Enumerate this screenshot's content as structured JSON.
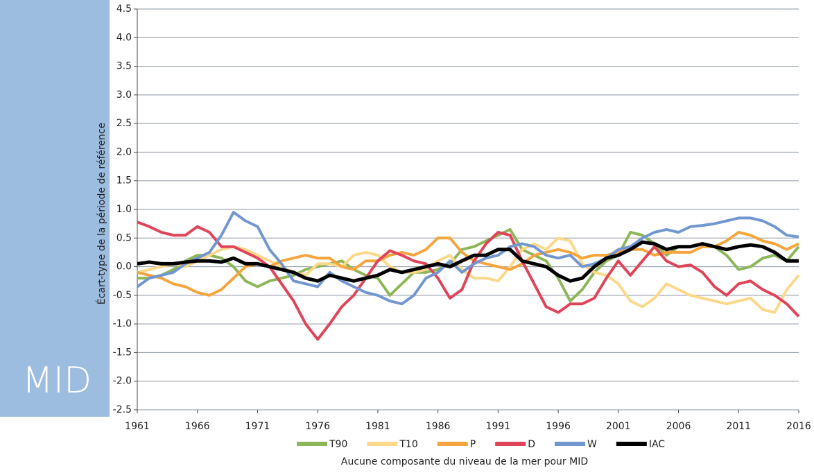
{
  "chart_data": {
    "type": "line",
    "panel_label": "MID",
    "y_label": "Écart-type de la période de référence",
    "x_label": "Aucune composante du niveau de la mer pour MID",
    "x": [
      1961,
      1962,
      1963,
      1964,
      1965,
      1966,
      1967,
      1968,
      1969,
      1970,
      1971,
      1972,
      1973,
      1974,
      1975,
      1976,
      1977,
      1978,
      1979,
      1980,
      1981,
      1982,
      1983,
      1984,
      1985,
      1986,
      1987,
      1988,
      1989,
      1990,
      1991,
      1992,
      1993,
      1994,
      1995,
      1996,
      1997,
      1998,
      1999,
      2000,
      2001,
      2002,
      2003,
      2004,
      2005,
      2006,
      2007,
      2008,
      2009,
      2010,
      2011,
      2012,
      2013,
      2014,
      2015,
      2016
    ],
    "xlim": [
      1961,
      2016
    ],
    "xticks": [
      1961,
      1966,
      1971,
      1976,
      1981,
      1986,
      1991,
      1996,
      2001,
      2006,
      2011,
      2016
    ],
    "ylim": [
      -2.5,
      4.5
    ],
    "yticks": [
      {
        "value": -2.5,
        "label": "-2.5"
      },
      {
        "value": -2,
        "label": "-2.0"
      },
      {
        "value": -1.5,
        "label": "-1.5"
      },
      {
        "value": -1,
        "label": "-1.0"
      },
      {
        "value": -0.5,
        "label": "-0.5"
      },
      {
        "value": 0,
        "label": "0.0"
      },
      {
        "value": 0.5,
        "label": "0.5"
      },
      {
        "value": 1,
        "label": "1.0"
      },
      {
        "value": 1.5,
        "label": "1.5"
      },
      {
        "value": 2,
        "label": "2.0"
      },
      {
        "value": 2.5,
        "label": "2.5"
      },
      {
        "value": 3,
        "label": "3.0"
      },
      {
        "value": 3.5,
        "label": "3.5"
      },
      {
        "value": 4,
        "label": "4.0"
      },
      {
        "value": 4.5,
        "label": "4.5"
      }
    ],
    "grid": true,
    "series": [
      {
        "name": "T90",
        "color": "#8db65a",
        "values": [
          -0.2,
          -0.2,
          -0.15,
          -0.05,
          0.1,
          0.2,
          0.2,
          0.15,
          0.0,
          -0.25,
          -0.35,
          -0.25,
          -0.2,
          -0.15,
          -0.05,
          0.0,
          0.05,
          0.1,
          -0.05,
          -0.15,
          -0.2,
          -0.5,
          -0.3,
          -0.1,
          -0.1,
          -0.05,
          0.05,
          0.3,
          0.35,
          0.45,
          0.55,
          0.65,
          0.3,
          0.2,
          0.1,
          -0.2,
          -0.6,
          -0.4,
          -0.1,
          0.1,
          0.2,
          0.6,
          0.55,
          0.4,
          0.2,
          0.35,
          0.35,
          0.4,
          0.35,
          0.2,
          -0.05,
          0.0,
          0.15,
          0.2,
          0.1,
          0.35
        ]
      },
      {
        "name": "T10",
        "color": "#fcd98a",
        "values": [
          -0.1,
          -0.05,
          0.0,
          0.05,
          0.0,
          0.1,
          0.2,
          0.3,
          0.35,
          0.3,
          0.2,
          0.1,
          0.0,
          -0.1,
          -0.15,
          0.05,
          0.05,
          0.0,
          0.2,
          0.25,
          0.2,
          0.0,
          -0.1,
          -0.1,
          -0.05,
          0.1,
          0.2,
          -0.05,
          -0.2,
          -0.2,
          -0.25,
          0.0,
          0.3,
          0.4,
          0.3,
          0.5,
          0.45,
          0.05,
          -0.1,
          -0.15,
          -0.3,
          -0.6,
          -0.7,
          -0.55,
          -0.3,
          -0.4,
          -0.5,
          -0.55,
          -0.6,
          -0.65,
          -0.6,
          -0.55,
          -0.75,
          -0.8,
          -0.4,
          -0.15
        ]
      },
      {
        "name": "P",
        "color": "#f5a53d",
        "values": [
          -0.1,
          -0.15,
          -0.2,
          -0.3,
          -0.35,
          -0.45,
          -0.5,
          -0.4,
          -0.2,
          0.0,
          0.05,
          0.0,
          0.1,
          0.15,
          0.2,
          0.15,
          0.15,
          0.0,
          -0.05,
          0.1,
          0.1,
          0.2,
          0.25,
          0.2,
          0.3,
          0.5,
          0.5,
          0.25,
          0.1,
          0.05,
          0.0,
          -0.05,
          0.05,
          0.2,
          0.25,
          0.3,
          0.25,
          0.15,
          0.2,
          0.2,
          0.25,
          0.3,
          0.3,
          0.2,
          0.25,
          0.25,
          0.25,
          0.35,
          0.35,
          0.45,
          0.6,
          0.55,
          0.45,
          0.4,
          0.3,
          0.4
        ]
      },
      {
        "name": "D",
        "color": "#e04459",
        "values": [
          0.78,
          0.7,
          0.6,
          0.55,
          0.55,
          0.7,
          0.6,
          0.35,
          0.35,
          0.25,
          0.15,
          0.0,
          -0.3,
          -0.6,
          -1.0,
          -1.27,
          -1.0,
          -0.7,
          -0.5,
          -0.2,
          0.1,
          0.28,
          0.2,
          0.1,
          0.05,
          -0.2,
          -0.55,
          -0.4,
          0.1,
          0.4,
          0.6,
          0.55,
          0.1,
          -0.3,
          -0.7,
          -0.8,
          -0.65,
          -0.65,
          -0.55,
          -0.2,
          0.1,
          -0.15,
          0.1,
          0.35,
          0.1,
          0.0,
          0.03,
          -0.1,
          -0.35,
          -0.5,
          -0.3,
          -0.25,
          -0.4,
          -0.5,
          -0.65,
          -0.87
        ]
      },
      {
        "name": "W",
        "color": "#7297d0",
        "values": [
          -0.35,
          -0.2,
          -0.15,
          -0.1,
          0.05,
          0.15,
          0.25,
          0.55,
          0.95,
          0.8,
          0.7,
          0.3,
          0.05,
          -0.25,
          -0.3,
          -0.35,
          -0.1,
          -0.25,
          -0.35,
          -0.45,
          -0.5,
          -0.6,
          -0.65,
          -0.5,
          -0.2,
          -0.1,
          0.1,
          -0.1,
          0.05,
          0.15,
          0.2,
          0.35,
          0.4,
          0.35,
          0.2,
          0.15,
          0.2,
          0.0,
          0.05,
          0.15,
          0.3,
          0.35,
          0.5,
          0.6,
          0.65,
          0.6,
          0.7,
          0.72,
          0.75,
          0.8,
          0.85,
          0.85,
          0.8,
          0.7,
          0.55,
          0.52
        ]
      },
      {
        "name": "IAC",
        "color": "#000000",
        "values": [
          0.05,
          0.08,
          0.05,
          0.05,
          0.08,
          0.1,
          0.1,
          0.08,
          0.15,
          0.05,
          0.05,
          0.0,
          -0.05,
          -0.1,
          -0.2,
          -0.25,
          -0.15,
          -0.2,
          -0.25,
          -0.2,
          -0.15,
          -0.05,
          -0.1,
          -0.05,
          0.0,
          0.05,
          0.0,
          0.1,
          0.2,
          0.2,
          0.3,
          0.3,
          0.1,
          0.05,
          0.0,
          -0.15,
          -0.25,
          -0.2,
          0.0,
          0.15,
          0.2,
          0.3,
          0.43,
          0.4,
          0.3,
          0.35,
          0.35,
          0.4,
          0.35,
          0.3,
          0.35,
          0.38,
          0.35,
          0.25,
          0.1,
          0.1
        ]
      }
    ]
  }
}
